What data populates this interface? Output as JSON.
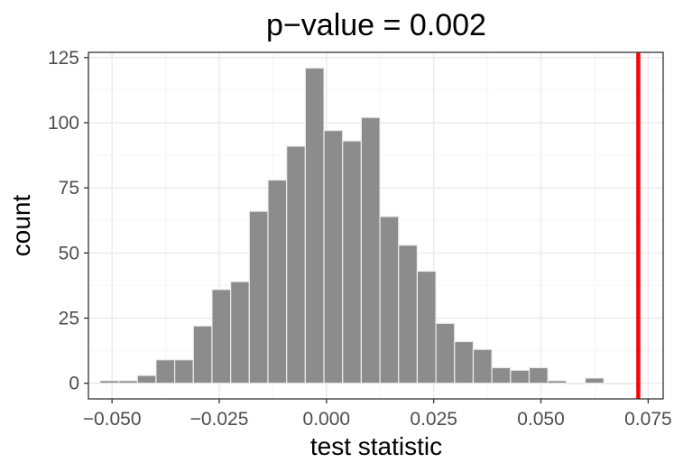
{
  "chart_data": {
    "type": "histogram",
    "title": "p−value = 0.002",
    "xlabel": "test statistic",
    "ylabel": "count",
    "xlim": [
      -0.0555,
      0.0785
    ],
    "ylim": [
      -6,
      127
    ],
    "x_ticks": [
      -0.05,
      -0.025,
      0.0,
      0.025,
      0.05,
      0.075
    ],
    "x_tick_labels": [
      "−0.050",
      "−0.025",
      "0.000",
      "0.025",
      "0.050",
      "0.075"
    ],
    "y_ticks": [
      0,
      25,
      50,
      75,
      100,
      125
    ],
    "y_tick_labels": [
      "0",
      "25",
      "50",
      "75",
      "100",
      "125"
    ],
    "grid": true,
    "bin_width": 0.00435,
    "bins": [
      {
        "x_start": -0.05279,
        "x_end": -0.04844,
        "count": 1
      },
      {
        "x_start": -0.04844,
        "x_end": -0.04409,
        "count": 1
      },
      {
        "x_start": -0.04409,
        "x_end": -0.03974,
        "count": 3
      },
      {
        "x_start": -0.03974,
        "x_end": -0.03539,
        "count": 9
      },
      {
        "x_start": -0.03539,
        "x_end": -0.03104,
        "count": 9
      },
      {
        "x_start": -0.03104,
        "x_end": -0.02669,
        "count": 22
      },
      {
        "x_start": -0.02669,
        "x_end": -0.02234,
        "count": 36
      },
      {
        "x_start": -0.02234,
        "x_end": -0.01799,
        "count": 39
      },
      {
        "x_start": -0.01799,
        "x_end": -0.01364,
        "count": 66
      },
      {
        "x_start": -0.01364,
        "x_end": -0.00929,
        "count": 78
      },
      {
        "x_start": -0.00929,
        "x_end": -0.00494,
        "count": 91
      },
      {
        "x_start": -0.00494,
        "x_end": -0.00059,
        "count": 121
      },
      {
        "x_start": -0.00059,
        "x_end": 0.00376,
        "count": 97
      },
      {
        "x_start": 0.00376,
        "x_end": 0.00811,
        "count": 93
      },
      {
        "x_start": 0.00811,
        "x_end": 0.01246,
        "count": 102
      },
      {
        "x_start": 0.01246,
        "x_end": 0.01681,
        "count": 64
      },
      {
        "x_start": 0.01681,
        "x_end": 0.02116,
        "count": 53
      },
      {
        "x_start": 0.02116,
        "x_end": 0.02551,
        "count": 43
      },
      {
        "x_start": 0.02551,
        "x_end": 0.02986,
        "count": 23
      },
      {
        "x_start": 0.02986,
        "x_end": 0.03421,
        "count": 16
      },
      {
        "x_start": 0.03421,
        "x_end": 0.03856,
        "count": 13
      },
      {
        "x_start": 0.03856,
        "x_end": 0.04291,
        "count": 6
      },
      {
        "x_start": 0.04291,
        "x_end": 0.04726,
        "count": 5
      },
      {
        "x_start": 0.04726,
        "x_end": 0.05161,
        "count": 6
      },
      {
        "x_start": 0.05161,
        "x_end": 0.05596,
        "count": 1
      },
      {
        "x_start": 0.05596,
        "x_end": 0.06031,
        "count": 0
      },
      {
        "x_start": 0.06031,
        "x_end": 0.06466,
        "count": 2
      },
      {
        "x_start": 0.06466,
        "x_end": 0.06901,
        "count": 0
      },
      {
        "x_start": 0.06901,
        "x_end": 0.07336,
        "count": 0
      }
    ],
    "observed_statistic": 0.0727,
    "colors": {
      "bar_fill": "#8c8c8c",
      "bar_stroke": "#ececec",
      "observed_line": "#ff0000",
      "grid_major": "#ebebeb",
      "grid_minor": "#f5f5f5",
      "panel_border": "#333333",
      "tick_label": "#4d4d4d"
    }
  }
}
